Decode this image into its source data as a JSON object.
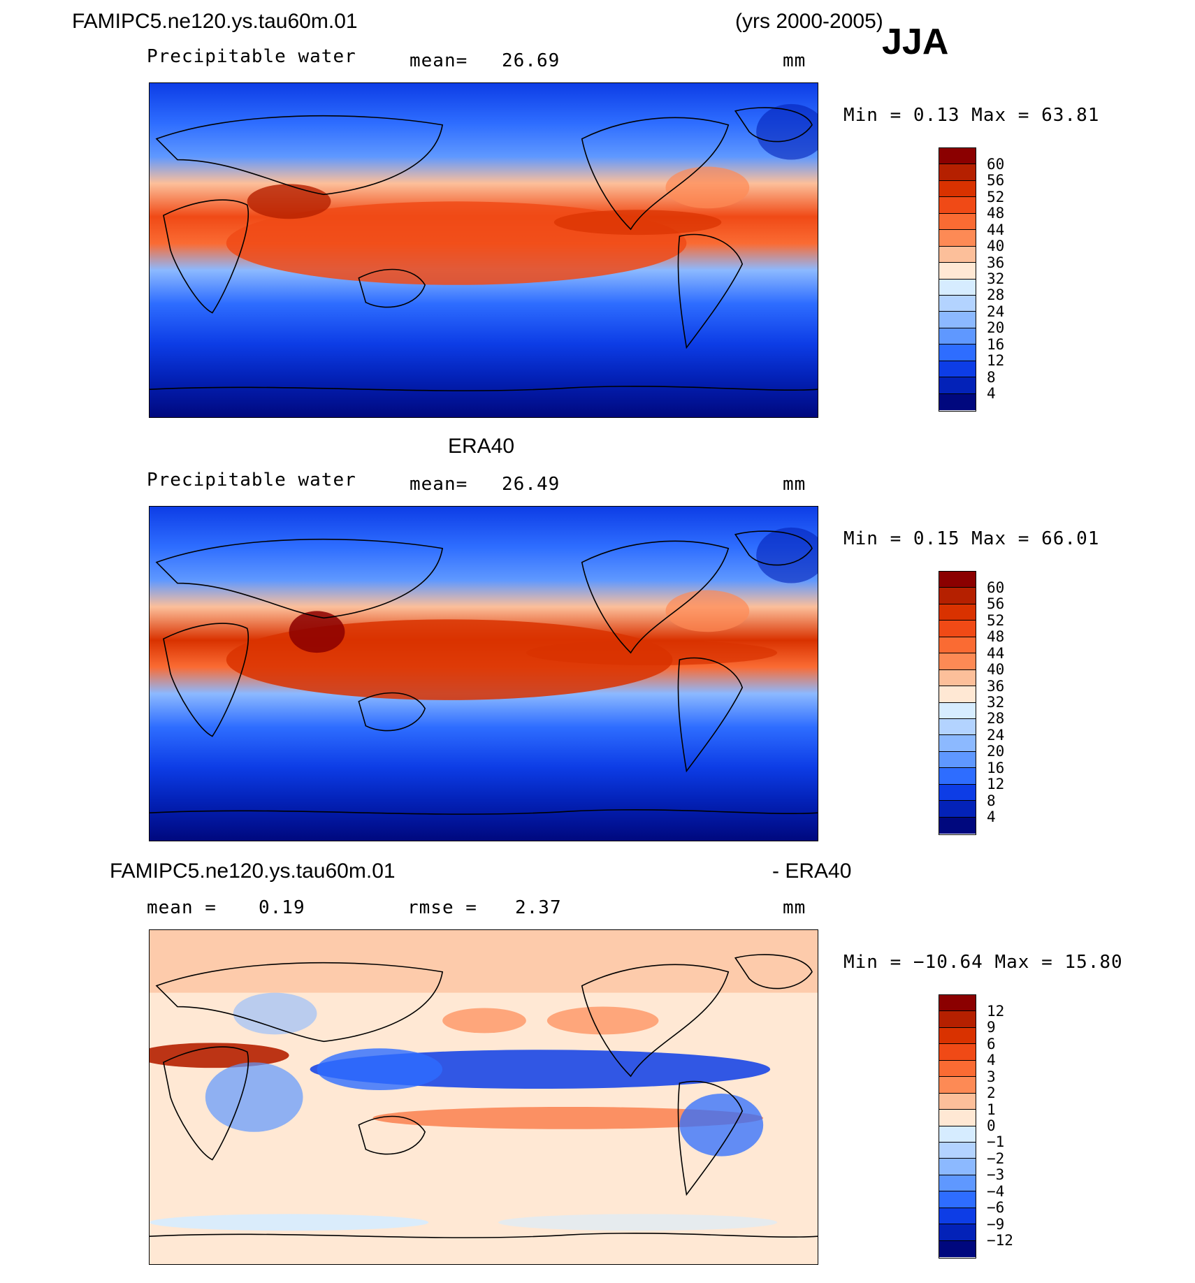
{
  "header": {
    "case_name": "FAMIPC5.ne120.ys.tau60m.01",
    "years": "(yrs 2000-2005)",
    "season": "JJA"
  },
  "panels": [
    {
      "title": "",
      "variable": "Precipitable water",
      "mean_label": "mean=",
      "mean_value": "26.69",
      "units": "mm",
      "minmax": "Min =    0.13  Max =    63.81",
      "levels": [
        "60",
        "56",
        "52",
        "48",
        "44",
        "40",
        "36",
        "32",
        "28",
        "24",
        "20",
        "16",
        "12",
        "8",
        "4"
      ],
      "colors": [
        "#8b0000",
        "#b52000",
        "#d93200",
        "#f04a16",
        "#fa6b33",
        "#fd8a55",
        "#fcbf9a",
        "#ffe8d4",
        "#d6ecff",
        "#b3d3ff",
        "#8cb9ff",
        "#5f98ff",
        "#2e6dff",
        "#0d3de6",
        "#0322b8",
        "#00087e"
      ]
    },
    {
      "title": "ERA40",
      "variable": "Precipitable water",
      "mean_label": "mean=",
      "mean_value": "26.49",
      "units": "mm",
      "minmax": "Min =    0.15  Max =    66.01",
      "levels": [
        "60",
        "56",
        "52",
        "48",
        "44",
        "40",
        "36",
        "32",
        "28",
        "24",
        "20",
        "16",
        "12",
        "8",
        "4"
      ],
      "colors": [
        "#8b0000",
        "#b52000",
        "#d93200",
        "#f04a16",
        "#fa6b33",
        "#fd8a55",
        "#fcbf9a",
        "#ffe8d4",
        "#d6ecff",
        "#b3d3ff",
        "#8cb9ff",
        "#5f98ff",
        "#2e6dff",
        "#0d3de6",
        "#0322b8",
        "#00087e"
      ]
    },
    {
      "title_left": "FAMIPC5.ne120.ys.tau60m.01",
      "title_right": "- ERA40",
      "mean_label": "mean  =",
      "mean_value": "0.19",
      "rmse_label": "rmse  =",
      "rmse_value": "2.37",
      "units": "mm",
      "minmax": "Min = −10.64  Max =    15.80",
      "levels": [
        "12",
        "9",
        "6",
        "4",
        "3",
        "2",
        "1",
        "0",
        "−1",
        "−2",
        "−3",
        "−4",
        "−6",
        "−9",
        "−12"
      ],
      "colors": [
        "#8b0000",
        "#b52000",
        "#d93200",
        "#f04a16",
        "#fa6b33",
        "#fd8a55",
        "#fcbf9a",
        "#ffe8d4",
        "#d6ecff",
        "#b3d3ff",
        "#8cb9ff",
        "#5f98ff",
        "#2e6dff",
        "#0d3de6",
        "#0322b8",
        "#00087e"
      ]
    }
  ]
}
